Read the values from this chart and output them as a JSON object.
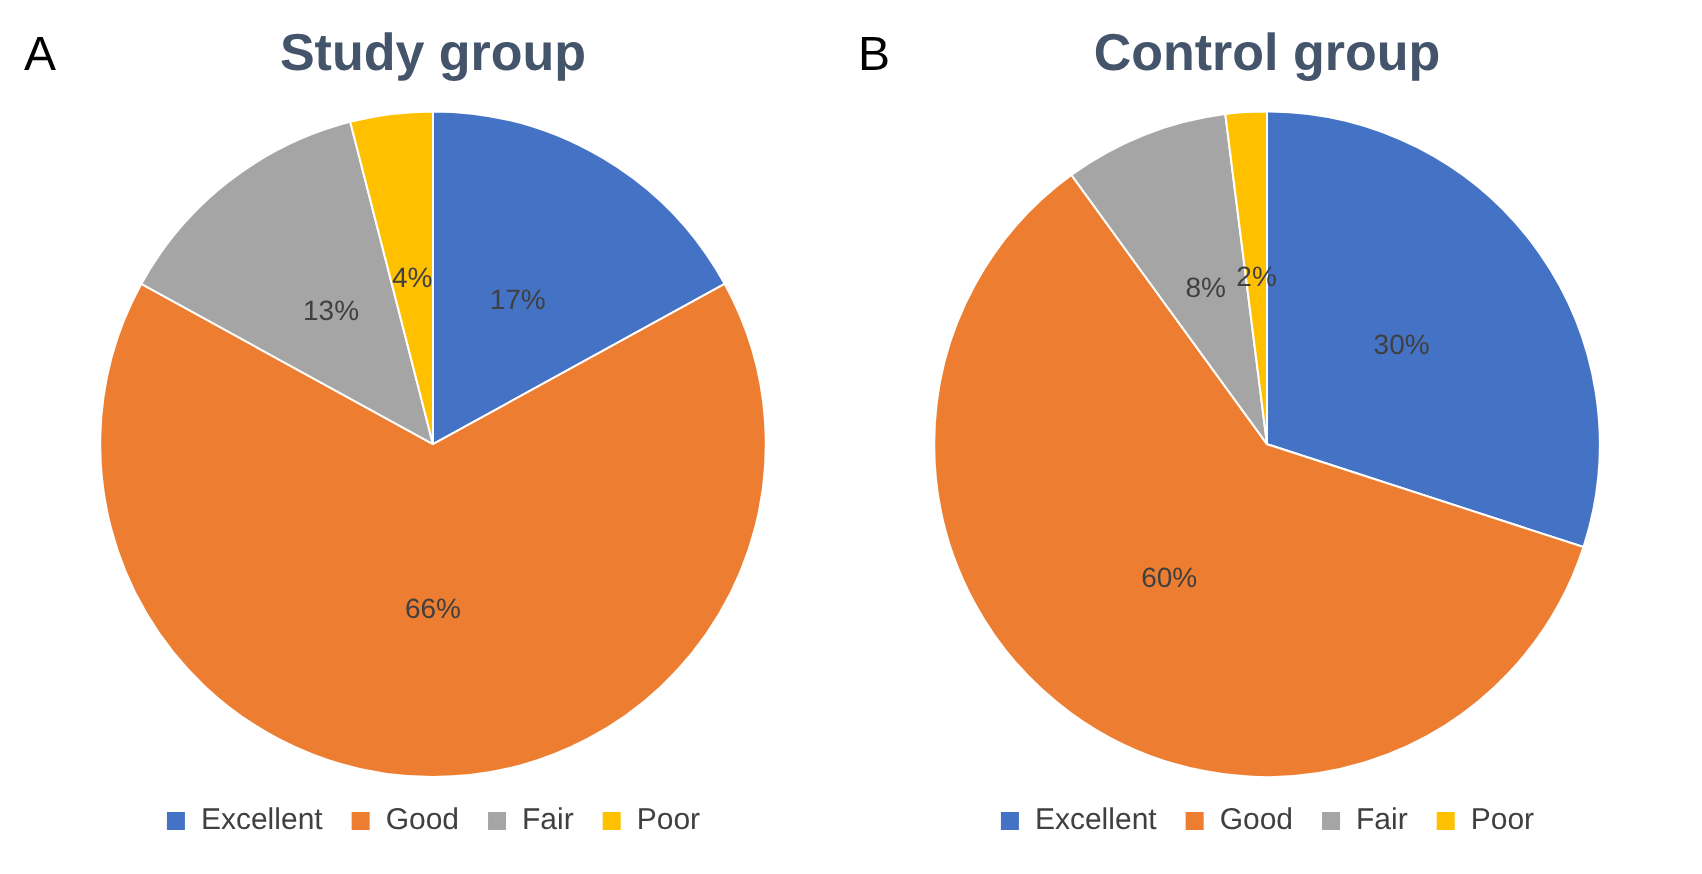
{
  "chart_data": [
    {
      "type": "pie",
      "title": "Study group",
      "annotations": [
        "A"
      ],
      "categories": [
        "Excellent",
        "Good",
        "Fair",
        "Poor"
      ],
      "values": [
        17,
        66,
        13,
        4
      ],
      "value_labels": [
        "17%",
        "66%",
        "13%",
        "4%"
      ],
      "colors": [
        "#4472c4",
        "#ed7d31",
        "#a5a5a5",
        "#ffc000"
      ],
      "legend": "bottom"
    },
    {
      "type": "pie",
      "title": "Control group",
      "annotations": [
        "B"
      ],
      "categories": [
        "Excellent",
        "Good",
        "Fair",
        "Poor"
      ],
      "values": [
        30,
        60,
        8,
        2
      ],
      "value_labels": [
        "30%",
        "60%",
        "8%",
        "2%"
      ],
      "colors": [
        "#4472c4",
        "#ed7d31",
        "#a5a5a5",
        "#ffc000"
      ],
      "legend": "bottom"
    }
  ]
}
